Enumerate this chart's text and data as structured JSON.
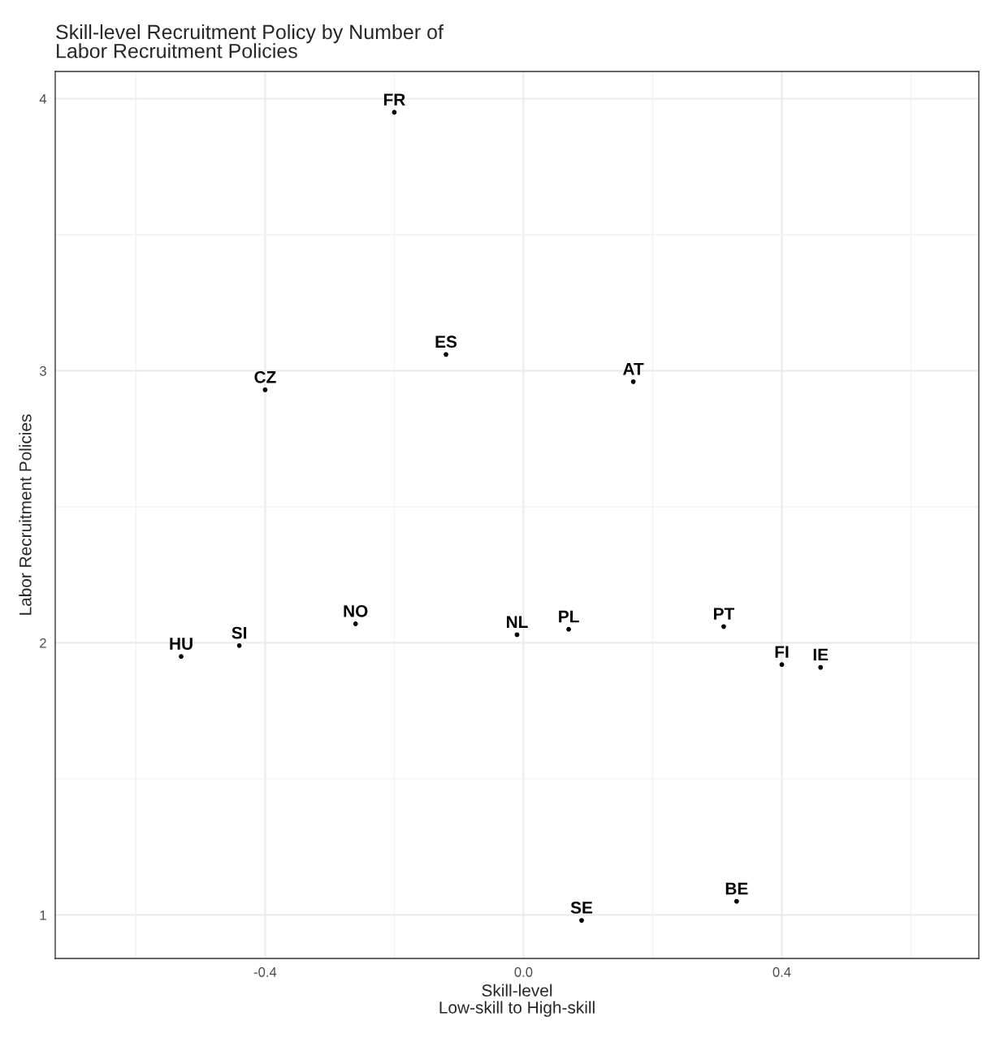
{
  "chart_data": {
    "type": "scatter",
    "title": "Skill-level Recruitment Policy by Number of\nLabor Recruitment Policies",
    "xlabel": "Skill-level\nLow-skill to High-skill",
    "ylabel": "Labor Recruitment Policies",
    "series": [
      {
        "color": "#000000",
        "x": [
          -0.2,
          -0.12,
          -0.4,
          0.17,
          -0.26,
          -0.01,
          0.07,
          0.31,
          -0.44,
          -0.53,
          0.4,
          0.46,
          0.33,
          0.09
        ],
        "values": [
          3.95,
          3.06,
          2.93,
          2.96,
          2.07,
          2.03,
          2.05,
          2.06,
          1.99,
          1.95,
          1.92,
          1.91,
          1.05,
          0.98
        ],
        "value_labels": [
          "FR",
          "ES",
          "CZ",
          "AT",
          "NO",
          "NL",
          "PL",
          "PT",
          "SI",
          "HU",
          "FI",
          "IE",
          "BE",
          "SE"
        ]
      }
    ],
    "marker": "circle",
    "xlim": [
      -0.725,
      0.705
    ],
    "ylim": [
      0.84,
      4.1
    ],
    "xticks": [
      {
        "value": -0.6,
        "label": null
      },
      -0.4,
      {
        "value": -0.2,
        "label": null
      },
      {
        "value": 0,
        "label": "0.0"
      },
      {
        "value": 0.2,
        "label": null
      },
      0.4,
      {
        "value": 0.6,
        "label": null
      }
    ],
    "yticks": [
      1,
      {
        "value": 1.5,
        "label": null
      },
      2,
      {
        "value": 2.5,
        "label": null
      },
      3,
      {
        "value": 3.5,
        "label": null
      },
      4
    ],
    "grid": true,
    "legend": false
  }
}
